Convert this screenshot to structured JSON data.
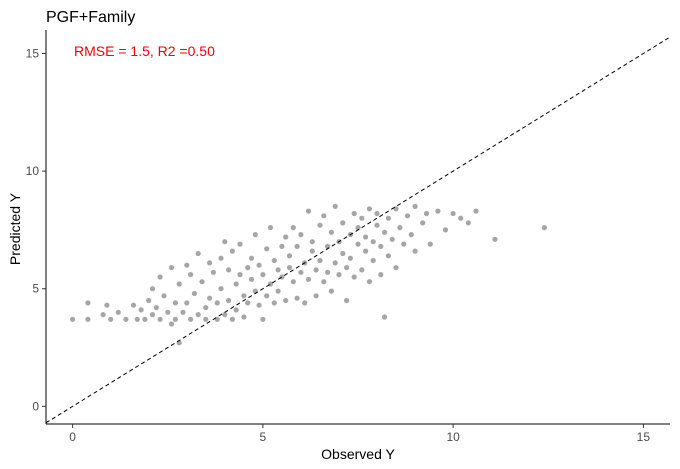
{
  "chart_data": {
    "type": "scatter",
    "title": "PGF+Family",
    "xlabel": "Observed Y",
    "ylabel": "Predicted Y",
    "xlim": [
      -0.7,
      15.7
    ],
    "ylim": [
      -0.75,
      16.0
    ],
    "x_ticks": [
      0,
      5,
      10,
      15
    ],
    "y_ticks": [
      0,
      5,
      10,
      15
    ],
    "grid": false,
    "annotation": {
      "text": "RMSE = 1.5, R2 =0.50",
      "color": "#ff0000"
    },
    "reference_line": {
      "type": "y=x",
      "style": "dashed",
      "color": "#000000"
    },
    "point_color": "#a6a6a6",
    "series": [
      {
        "values": [
          [
            0.0,
            3.7
          ],
          [
            0.4,
            3.7
          ],
          [
            0.4,
            4.4
          ],
          [
            0.8,
            3.9
          ],
          [
            0.9,
            4.3
          ],
          [
            1.0,
            3.7
          ],
          [
            1.2,
            4.0
          ],
          [
            1.4,
            3.7
          ],
          [
            1.6,
            4.3
          ],
          [
            1.7,
            3.7
          ],
          [
            1.8,
            4.1
          ],
          [
            1.9,
            3.7
          ],
          [
            2.0,
            4.5
          ],
          [
            2.1,
            3.9
          ],
          [
            2.1,
            5.0
          ],
          [
            2.2,
            4.2
          ],
          [
            2.3,
            3.7
          ],
          [
            2.3,
            5.5
          ],
          [
            2.4,
            4.7
          ],
          [
            2.5,
            4.0
          ],
          [
            2.6,
            3.5
          ],
          [
            2.6,
            5.9
          ],
          [
            2.7,
            4.4
          ],
          [
            2.7,
            3.7
          ],
          [
            2.8,
            5.2
          ],
          [
            2.8,
            2.7
          ],
          [
            2.9,
            4.0
          ],
          [
            3.0,
            6.0
          ],
          [
            3.0,
            4.4
          ],
          [
            3.1,
            3.7
          ],
          [
            3.1,
            5.6
          ],
          [
            3.2,
            4.8
          ],
          [
            3.3,
            6.5
          ],
          [
            3.3,
            3.9
          ],
          [
            3.4,
            5.3
          ],
          [
            3.5,
            4.2
          ],
          [
            3.5,
            3.7
          ],
          [
            3.6,
            6.1
          ],
          [
            3.6,
            4.6
          ],
          [
            3.7,
            5.7
          ],
          [
            3.8,
            3.7
          ],
          [
            3.8,
            4.4
          ],
          [
            3.9,
            6.3
          ],
          [
            3.9,
            5.0
          ],
          [
            4.0,
            3.9
          ],
          [
            4.0,
            7.0
          ],
          [
            4.1,
            4.5
          ],
          [
            4.1,
            5.8
          ],
          [
            4.2,
            3.7
          ],
          [
            4.2,
            6.6
          ],
          [
            4.3,
            5.2
          ],
          [
            4.3,
            4.1
          ],
          [
            4.4,
            5.6
          ],
          [
            4.4,
            6.9
          ],
          [
            4.5,
            4.7
          ],
          [
            4.5,
            3.8
          ],
          [
            4.6,
            5.9
          ],
          [
            4.6,
            4.4
          ],
          [
            4.7,
            6.3
          ],
          [
            4.7,
            5.4
          ],
          [
            4.8,
            7.3
          ],
          [
            4.8,
            4.9
          ],
          [
            4.9,
            6.0
          ],
          [
            4.9,
            4.3
          ],
          [
            5.0,
            5.6
          ],
          [
            5.0,
            3.7
          ],
          [
            5.1,
            6.7
          ],
          [
            5.1,
            4.7
          ],
          [
            5.2,
            5.2
          ],
          [
            5.2,
            7.6
          ],
          [
            5.3,
            4.4
          ],
          [
            5.3,
            6.2
          ],
          [
            5.4,
            5.8
          ],
          [
            5.4,
            4.9
          ],
          [
            5.5,
            6.8
          ],
          [
            5.5,
            5.5
          ],
          [
            5.6,
            4.5
          ],
          [
            5.6,
            7.2
          ],
          [
            5.7,
            5.9
          ],
          [
            5.7,
            6.4
          ],
          [
            5.8,
            5.3
          ],
          [
            5.8,
            7.6
          ],
          [
            5.9,
            4.6
          ],
          [
            5.9,
            6.8
          ],
          [
            6.0,
            5.7
          ],
          [
            6.0,
            7.3
          ],
          [
            6.1,
            6.1
          ],
          [
            6.1,
            4.4
          ],
          [
            6.2,
            8.3
          ],
          [
            6.2,
            5.4
          ],
          [
            6.3,
            6.6
          ],
          [
            6.3,
            7.0
          ],
          [
            6.4,
            5.8
          ],
          [
            6.4,
            4.7
          ],
          [
            6.5,
            7.7
          ],
          [
            6.5,
            6.2
          ],
          [
            6.6,
            5.3
          ],
          [
            6.6,
            8.1
          ],
          [
            6.7,
            6.8
          ],
          [
            6.7,
            5.7
          ],
          [
            6.8,
            7.4
          ],
          [
            6.8,
            4.9
          ],
          [
            6.9,
            6.1
          ],
          [
            6.9,
            8.5
          ],
          [
            7.0,
            5.6
          ],
          [
            7.0,
            7.0
          ],
          [
            7.1,
            6.5
          ],
          [
            7.1,
            7.8
          ],
          [
            7.2,
            5.9
          ],
          [
            7.2,
            4.5
          ],
          [
            7.3,
            7.3
          ],
          [
            7.3,
            6.3
          ],
          [
            7.4,
            8.2
          ],
          [
            7.4,
            5.5
          ],
          [
            7.5,
            6.9
          ],
          [
            7.5,
            7.6
          ],
          [
            7.6,
            5.8
          ],
          [
            7.6,
            8.0
          ],
          [
            7.7,
            6.6
          ],
          [
            7.7,
            7.2
          ],
          [
            7.8,
            8.4
          ],
          [
            7.8,
            5.3
          ],
          [
            7.9,
            7.0
          ],
          [
            7.9,
            6.2
          ],
          [
            8.0,
            7.7
          ],
          [
            8.0,
            8.2
          ],
          [
            8.1,
            6.8
          ],
          [
            8.1,
            5.6
          ],
          [
            8.2,
            7.4
          ],
          [
            8.2,
            3.8
          ],
          [
            8.3,
            8.0
          ],
          [
            8.3,
            6.4
          ],
          [
            8.4,
            7.1
          ],
          [
            8.5,
            8.4
          ],
          [
            8.5,
            5.9
          ],
          [
            8.6,
            7.6
          ],
          [
            8.7,
            6.9
          ],
          [
            8.8,
            8.1
          ],
          [
            8.9,
            7.3
          ],
          [
            9.0,
            8.5
          ],
          [
            9.0,
            6.6
          ],
          [
            9.2,
            7.8
          ],
          [
            9.3,
            8.2
          ],
          [
            9.4,
            6.9
          ],
          [
            9.6,
            8.3
          ],
          [
            9.8,
            7.5
          ],
          [
            10.0,
            8.2
          ],
          [
            10.2,
            8.0
          ],
          [
            10.4,
            7.8
          ],
          [
            10.6,
            8.3
          ],
          [
            11.1,
            7.1
          ],
          [
            12.4,
            7.6
          ]
        ]
      }
    ]
  }
}
